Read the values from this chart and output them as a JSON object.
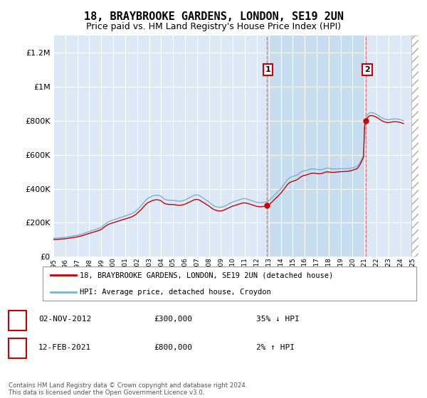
{
  "title": "18, BRAYBROOKE GARDENS, LONDON, SE19 2UN",
  "subtitle": "Price paid vs. HM Land Registry's House Price Index (HPI)",
  "title_fontsize": 11,
  "subtitle_fontsize": 9,
  "ylim": [
    0,
    1300000
  ],
  "yticks": [
    0,
    200000,
    400000,
    600000,
    800000,
    1000000,
    1200000
  ],
  "background_color": "#ffffff",
  "plot_bg_color": "#dce8f5",
  "grid_color": "#ffffff",
  "hpi_color": "#7ab0d4",
  "price_color": "#cc0000",
  "vline_color": "#ff5555",
  "shade_color": "#c8dcf0",
  "point1_year": 2012.83,
  "point1_price": 300000,
  "point2_year": 2021.12,
  "point2_price": 800000,
  "legend_line1": "18, BRAYBROOKE GARDENS, LONDON, SE19 2UN (detached house)",
  "legend_line2": "HPI: Average price, detached house, Croydon",
  "row1_label": "1",
  "row1_date": "02-NOV-2012",
  "row1_price": "£300,000",
  "row1_pct": "35% ↓ HPI",
  "row2_label": "2",
  "row2_date": "12-FEB-2021",
  "row2_price": "£800,000",
  "row2_pct": "2% ↑ HPI",
  "footer": "Contains HM Land Registry data © Crown copyright and database right 2024.\nThis data is licensed under the Open Government Licence v3.0.",
  "hpi_years": [
    1995.0,
    1995.083,
    1995.167,
    1995.25,
    1995.333,
    1995.417,
    1995.5,
    1995.583,
    1995.667,
    1995.75,
    1995.833,
    1995.917,
    1996.0,
    1996.083,
    1996.167,
    1996.25,
    1996.333,
    1996.417,
    1996.5,
    1996.583,
    1996.667,
    1996.75,
    1996.833,
    1996.917,
    1997.0,
    1997.083,
    1997.167,
    1997.25,
    1997.333,
    1997.417,
    1997.5,
    1997.583,
    1997.667,
    1997.75,
    1997.833,
    1997.917,
    1998.0,
    1998.083,
    1998.167,
    1998.25,
    1998.333,
    1998.417,
    1998.5,
    1998.583,
    1998.667,
    1998.75,
    1998.833,
    1998.917,
    1999.0,
    1999.083,
    1999.167,
    1999.25,
    1999.333,
    1999.417,
    1999.5,
    1999.583,
    1999.667,
    1999.75,
    1999.833,
    1999.917,
    2000.0,
    2000.083,
    2000.167,
    2000.25,
    2000.333,
    2000.417,
    2000.5,
    2000.583,
    2000.667,
    2000.75,
    2000.833,
    2000.917,
    2001.0,
    2001.083,
    2001.167,
    2001.25,
    2001.333,
    2001.417,
    2001.5,
    2001.583,
    2001.667,
    2001.75,
    2001.833,
    2001.917,
    2002.0,
    2002.083,
    2002.167,
    2002.25,
    2002.333,
    2002.417,
    2002.5,
    2002.583,
    2002.667,
    2002.75,
    2002.833,
    2002.917,
    2003.0,
    2003.083,
    2003.167,
    2003.25,
    2003.333,
    2003.417,
    2003.5,
    2003.583,
    2003.667,
    2003.75,
    2003.833,
    2003.917,
    2004.0,
    2004.083,
    2004.167,
    2004.25,
    2004.333,
    2004.417,
    2004.5,
    2004.583,
    2004.667,
    2004.75,
    2004.833,
    2004.917,
    2005.0,
    2005.083,
    2005.167,
    2005.25,
    2005.333,
    2005.417,
    2005.5,
    2005.583,
    2005.667,
    2005.75,
    2005.833,
    2005.917,
    2006.0,
    2006.083,
    2006.167,
    2006.25,
    2006.333,
    2006.417,
    2006.5,
    2006.583,
    2006.667,
    2006.75,
    2006.833,
    2006.917,
    2007.0,
    2007.083,
    2007.167,
    2007.25,
    2007.333,
    2007.417,
    2007.5,
    2007.583,
    2007.667,
    2007.75,
    2007.833,
    2007.917,
    2008.0,
    2008.083,
    2008.167,
    2008.25,
    2008.333,
    2008.417,
    2008.5,
    2008.583,
    2008.667,
    2008.75,
    2008.833,
    2008.917,
    2009.0,
    2009.083,
    2009.167,
    2009.25,
    2009.333,
    2009.417,
    2009.5,
    2009.583,
    2009.667,
    2009.75,
    2009.833,
    2009.917,
    2010.0,
    2010.083,
    2010.167,
    2010.25,
    2010.333,
    2010.417,
    2010.5,
    2010.583,
    2010.667,
    2010.75,
    2010.833,
    2010.917,
    2011.0,
    2011.083,
    2011.167,
    2011.25,
    2011.333,
    2011.417,
    2011.5,
    2011.583,
    2011.667,
    2011.75,
    2011.833,
    2011.917,
    2012.0,
    2012.083,
    2012.167,
    2012.25,
    2012.333,
    2012.417,
    2012.5,
    2012.583,
    2012.667,
    2012.75,
    2012.833,
    2012.917,
    2013.0,
    2013.083,
    2013.167,
    2013.25,
    2013.333,
    2013.417,
    2013.5,
    2013.583,
    2013.667,
    2013.75,
    2013.833,
    2013.917,
    2014.0,
    2014.083,
    2014.167,
    2014.25,
    2014.333,
    2014.417,
    2014.5,
    2014.583,
    2014.667,
    2014.75,
    2014.833,
    2014.917,
    2015.0,
    2015.083,
    2015.167,
    2015.25,
    2015.333,
    2015.417,
    2015.5,
    2015.583,
    2015.667,
    2015.75,
    2015.833,
    2015.917,
    2016.0,
    2016.083,
    2016.167,
    2016.25,
    2016.333,
    2016.417,
    2016.5,
    2016.583,
    2016.667,
    2016.75,
    2016.833,
    2016.917,
    2017.0,
    2017.083,
    2017.167,
    2017.25,
    2017.333,
    2017.417,
    2017.5,
    2017.583,
    2017.667,
    2017.75,
    2017.833,
    2017.917,
    2018.0,
    2018.083,
    2018.167,
    2018.25,
    2018.333,
    2018.417,
    2018.5,
    2018.583,
    2018.667,
    2018.75,
    2018.833,
    2018.917,
    2019.0,
    2019.083,
    2019.167,
    2019.25,
    2019.333,
    2019.417,
    2019.5,
    2019.583,
    2019.667,
    2019.75,
    2019.833,
    2019.917,
    2020.0,
    2020.083,
    2020.167,
    2020.25,
    2020.333,
    2020.417,
    2020.5,
    2020.583,
    2020.667,
    2020.75,
    2020.833,
    2020.917,
    2021.0,
    2021.083,
    2021.167,
    2021.25,
    2021.333,
    2021.417,
    2021.5,
    2021.583,
    2021.667,
    2021.75,
    2021.833,
    2021.917,
    2022.0,
    2022.083,
    2022.167,
    2022.25,
    2022.333,
    2022.417,
    2022.5,
    2022.583,
    2022.667,
    2022.75,
    2022.833,
    2022.917,
    2023.0,
    2023.083,
    2023.167,
    2023.25,
    2023.333,
    2023.417,
    2023.5,
    2023.583,
    2023.667,
    2023.75,
    2023.833,
    2023.917,
    2024.0,
    2024.083,
    2024.167,
    2024.25
  ],
  "hpi_values": [
    108000,
    108500,
    109000,
    109500,
    110000,
    110500,
    111000,
    111500,
    112000,
    112500,
    113000,
    113500,
    114000,
    115000,
    116000,
    117000,
    118000,
    119000,
    120000,
    121000,
    122000,
    123000,
    124000,
    125000,
    126000,
    127500,
    129000,
    130500,
    132000,
    134000,
    136000,
    138000,
    140000,
    142000,
    144000,
    146000,
    148000,
    150000,
    152000,
    154000,
    156000,
    158000,
    160000,
    162000,
    164000,
    166000,
    168000,
    170000,
    174000,
    178000,
    183000,
    188000,
    193000,
    197000,
    201000,
    205000,
    208000,
    210000,
    212000,
    214000,
    216000,
    218000,
    220000,
    222000,
    224000,
    226000,
    228000,
    230000,
    232000,
    234000,
    236000,
    238000,
    240000,
    242000,
    244000,
    246000,
    248000,
    250000,
    252000,
    255000,
    258000,
    262000,
    266000,
    270000,
    276000,
    282000,
    288000,
    294000,
    300000,
    307000,
    314000,
    321000,
    328000,
    334000,
    340000,
    344000,
    347000,
    350000,
    353000,
    356000,
    358000,
    360000,
    361000,
    362000,
    362000,
    361000,
    360000,
    358000,
    356000,
    350000,
    344000,
    340000,
    337000,
    335000,
    334000,
    333000,
    332000,
    332000,
    332000,
    332000,
    332000,
    331000,
    330000,
    329000,
    328000,
    327000,
    327000,
    327000,
    328000,
    329000,
    330000,
    332000,
    334000,
    337000,
    340000,
    343000,
    346000,
    349000,
    352000,
    355000,
    358000,
    361000,
    363000,
    364000,
    364000,
    363000,
    361000,
    358000,
    354000,
    350000,
    346000,
    342000,
    338000,
    334000,
    330000,
    326000,
    322000,
    317000,
    312000,
    307000,
    303000,
    300000,
    297000,
    295000,
    293000,
    292000,
    291000,
    291000,
    291000,
    292000,
    294000,
    296000,
    299000,
    302000,
    305000,
    308000,
    311000,
    314000,
    317000,
    320000,
    322000,
    324000,
    326000,
    328000,
    330000,
    332000,
    334000,
    336000,
    338000,
    340000,
    341000,
    342000,
    342000,
    341000,
    340000,
    338000,
    336000,
    334000,
    332000,
    330000,
    328000,
    326000,
    324000,
    322000,
    320000,
    319000,
    318000,
    318000,
    318000,
    318000,
    319000,
    320000,
    321000,
    322000,
    324000,
    326000,
    330000,
    335000,
    340000,
    346000,
    352000,
    358000,
    364000,
    370000,
    376000,
    382000,
    388000,
    394000,
    400000,
    408000,
    416000,
    424000,
    432000,
    440000,
    448000,
    455000,
    461000,
    465000,
    468000,
    470000,
    472000,
    474000,
    476000,
    478000,
    480000,
    484000,
    488000,
    493000,
    497000,
    500000,
    503000,
    505000,
    506000,
    507000,
    508000,
    510000,
    512000,
    514000,
    516000,
    517000,
    517000,
    517000,
    516000,
    515000,
    514000,
    513000,
    512000,
    512000,
    512000,
    513000,
    514000,
    516000,
    518000,
    520000,
    521000,
    521000,
    520000,
    519000,
    518000,
    517000,
    516000,
    516000,
    516000,
    517000,
    517000,
    517000,
    518000,
    518000,
    518000,
    518000,
    518000,
    518000,
    518000,
    518000,
    518000,
    518000,
    519000,
    520000,
    521000,
    522000,
    524000,
    526000,
    528000,
    529000,
    530000,
    535000,
    543000,
    552000,
    562000,
    574000,
    587000,
    600000,
    780000,
    810000,
    825000,
    835000,
    842000,
    846000,
    848000,
    848000,
    847000,
    845000,
    843000,
    841000,
    838000,
    834000,
    830000,
    826000,
    822000,
    818000,
    815000,
    812000,
    810000,
    808000,
    807000,
    806000,
    806000,
    807000,
    808000,
    809000,
    810000,
    811000,
    811000,
    811000,
    811000,
    810000,
    809000,
    808000,
    806000,
    804000,
    802000,
    800000
  ]
}
